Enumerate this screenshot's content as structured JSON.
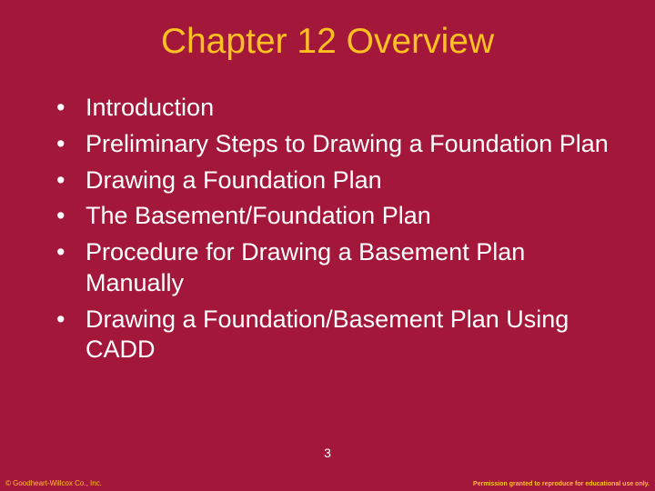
{
  "slide": {
    "background_color": "#a3173b",
    "title": {
      "text": "Chapter 12 Overview",
      "color": "#ffc122",
      "font_size_pt": 30,
      "font_weight": "normal",
      "align": "center"
    },
    "bullets": {
      "color": "#ffffff",
      "font_size_pt": 20,
      "marker": "•",
      "items": [
        "Introduction",
        "Preliminary Steps to Drawing a Foundation Plan",
        "Drawing a Foundation Plan",
        "The Basement/Foundation Plan",
        "Procedure for Drawing a Basement Plan Manually",
        "Drawing a Foundation/Basement Plan Using CADD"
      ]
    },
    "page_number": "3",
    "footer": {
      "copyright": "© Goodheart-Willcox Co., Inc.",
      "permission": "Permission granted to reproduce for educational use only.",
      "color": "#ffc122"
    }
  }
}
